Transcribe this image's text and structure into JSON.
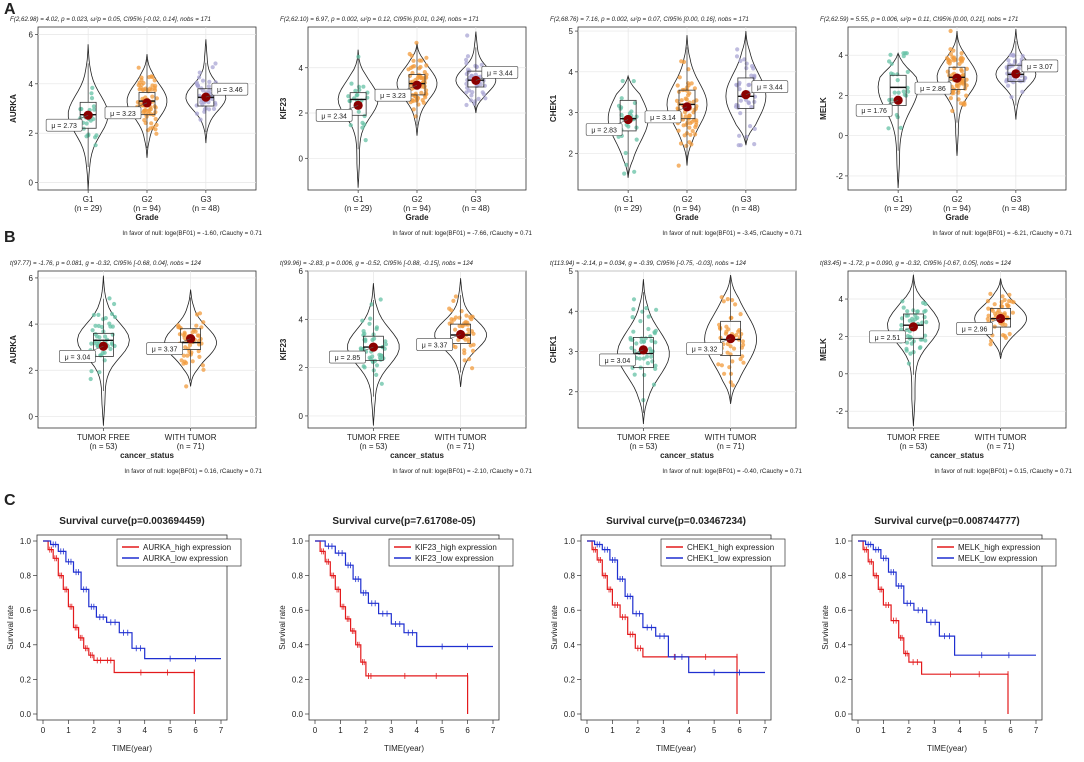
{
  "panels": {
    "a": "A",
    "b": "B",
    "c": "C"
  },
  "colors": {
    "g1": "#66C2A5",
    "g2": "#F29B3C",
    "g3": "#A9A5D4",
    "tf": "#66C2A5",
    "wt": "#F29B3C",
    "mean": "#8B0000",
    "high": "#E31A1C",
    "low": "#1F2FD0",
    "grid": "#E6E6E6",
    "border": "#333333"
  },
  "chart_data": {
    "row_a": {
      "type": "violin",
      "xlabel": "Grade",
      "groups": [
        {
          "name": "G1",
          "n": "(n = 29)"
        },
        {
          "name": "G2",
          "n": "(n = 94)"
        },
        {
          "name": "G3",
          "n": "(n = 48)"
        }
      ],
      "charts": [
        {
          "gene": "AURKA",
          "ylim": [
            -0.3,
            6.3
          ],
          "yticks": [
            0,
            2,
            4,
            6
          ],
          "subtitle": "F(2,62.98) = 4.02, p = 0.023, ω²p = 0.05, CI95% [-0.02, 0.14], nobs = 171",
          "footer": "In favor of null: loge(BF01) = -1.60, rCauchy = 0.71",
          "stats": [
            {
              "mean": 2.73,
              "median": 2.75,
              "q1": 2.2,
              "q3": 3.25,
              "min": -0.3,
              "max": 5.6,
              "label": "μ = 2.73"
            },
            {
              "mean": 3.23,
              "median": 3.3,
              "q1": 2.75,
              "q3": 3.65,
              "min": 1.0,
              "max": 5.2,
              "label": "μ = 3.23"
            },
            {
              "mean": 3.46,
              "median": 3.45,
              "q1": 3.1,
              "q3": 3.8,
              "min": 1.6,
              "max": 5.8,
              "label": "μ = 3.46"
            }
          ]
        },
        {
          "gene": "KIF23",
          "ylim": [
            -1.4,
            5.8
          ],
          "yticks": [
            0,
            2,
            4
          ],
          "subtitle": "F(2,62.10) = 6.97, p = 0.002, ω²p = 0.12, CI95% [0.01, 0.24], nobs = 171",
          "footer": "In favor of null: loge(BF01) = -7.66, rCauchy = 0.71",
          "stats": [
            {
              "mean": 2.34,
              "median": 2.6,
              "q1": 1.9,
              "q3": 2.9,
              "min": -1.3,
              "max": 4.8,
              "label": "μ = 2.34"
            },
            {
              "mean": 3.23,
              "median": 3.3,
              "q1": 2.8,
              "q3": 3.7,
              "min": 1.0,
              "max": 5.1,
              "label": "μ = 3.23"
            },
            {
              "mean": 3.44,
              "median": 3.45,
              "q1": 3.15,
              "q3": 3.85,
              "min": 2.0,
              "max": 5.6,
              "label": "μ = 3.44"
            }
          ]
        },
        {
          "gene": "CHEK1",
          "ylim": [
            1.1,
            5.1
          ],
          "yticks": [
            2,
            3,
            4,
            5
          ],
          "subtitle": "F(2,68.76) = 7.16, p = 0.002, ω²p = 0.07, CI95% [0.00, 0.16], nobs = 171",
          "footer": "In favor of null: loge(BF01) = -3.45, rCauchy = 0.71",
          "stats": [
            {
              "mean": 2.83,
              "median": 2.85,
              "q1": 2.55,
              "q3": 3.3,
              "min": 1.4,
              "max": 3.9,
              "label": "μ = 2.83"
            },
            {
              "mean": 3.14,
              "median": 3.2,
              "q1": 2.85,
              "q3": 3.55,
              "min": 1.7,
              "max": 4.9,
              "label": "μ = 3.14"
            },
            {
              "mean": 3.44,
              "median": 3.4,
              "q1": 3.1,
              "q3": 3.85,
              "min": 2.2,
              "max": 5.0,
              "label": "μ = 3.44"
            }
          ]
        },
        {
          "gene": "MELK",
          "ylim": [
            -2.7,
            5.4
          ],
          "yticks": [
            -2,
            0,
            2,
            4
          ],
          "subtitle": "F(2,62.59) = 5.55, p = 0.006, ω²p = 0.11, CI95% [0.00, 0.21], nobs = 171",
          "footer": "In favor of null: loge(BF01) = -6.21, rCauchy = 0.71",
          "stats": [
            {
              "mean": 1.76,
              "median": 2.4,
              "q1": 1.5,
              "q3": 3.0,
              "min": -2.6,
              "max": 4.1,
              "label": "μ = 1.76"
            },
            {
              "mean": 2.86,
              "median": 2.9,
              "q1": 2.3,
              "q3": 3.4,
              "min": -1.0,
              "max": 5.2,
              "label": "μ = 2.86"
            },
            {
              "mean": 3.07,
              "median": 3.05,
              "q1": 2.7,
              "q3": 3.5,
              "min": 0.8,
              "max": 5.3,
              "label": "μ = 3.07"
            }
          ]
        }
      ]
    },
    "row_b": {
      "type": "violin",
      "xlabel": "cancer_status",
      "groups": [
        {
          "name": "TUMOR FREE",
          "n": "(n = 53)"
        },
        {
          "name": "WITH TUMOR",
          "n": "(n = 71)"
        }
      ],
      "charts": [
        {
          "gene": "AURKA",
          "ylim": [
            -0.5,
            6.3
          ],
          "yticks": [
            0,
            2,
            4,
            6
          ],
          "subtitle": "t(97.77) = -1.76, p = 0.081, g = -0.32, CI95% [-0.68, 0.04], nobs = 124",
          "footer": "In favor of null: loge(BF01) = 0.16, rCauchy = 0.71",
          "stats": [
            {
              "mean": 3.04,
              "median": 3.3,
              "q1": 2.6,
              "q3": 3.6,
              "min": -0.4,
              "max": 6.1,
              "label": "μ = 3.04"
            },
            {
              "mean": 3.37,
              "median": 3.2,
              "q1": 2.9,
              "q3": 3.8,
              "min": 1.3,
              "max": 5.5,
              "label": "μ = 3.37"
            }
          ]
        },
        {
          "gene": "KIF23",
          "ylim": [
            -0.5,
            6.0
          ],
          "yticks": [
            0,
            2,
            4,
            6
          ],
          "subtitle": "t(99.96) = -2.83, p = 0.006, g = -0.52, CI95% [-0.88, -0.15], nobs = 124",
          "footer": "In favor of null: loge(BF01) = -2.10, rCauchy = 0.71",
          "stats": [
            {
              "mean": 2.85,
              "median": 2.85,
              "q1": 2.3,
              "q3": 3.3,
              "min": -0.4,
              "max": 5.5,
              "label": "μ = 2.85"
            },
            {
              "mean": 3.37,
              "median": 3.35,
              "q1": 3.0,
              "q3": 3.8,
              "min": 1.2,
              "max": 5.7,
              "label": "μ = 3.37"
            }
          ]
        },
        {
          "gene": "CHEK1",
          "ylim": [
            1.1,
            5.0
          ],
          "yticks": [
            2,
            3,
            4,
            5
          ],
          "subtitle": "t(113.94) = -2.14, p = 0.034, g = -0.39, CI95% [-0.75, -0.03], nobs = 124",
          "footer": "In favor of null: loge(BF01) = -0.40, rCauchy = 0.71",
          "stats": [
            {
              "mean": 3.04,
              "median": 2.95,
              "q1": 2.6,
              "q3": 3.35,
              "min": 1.2,
              "max": 4.8,
              "label": "μ = 3.04"
            },
            {
              "mean": 3.32,
              "median": 3.3,
              "q1": 2.9,
              "q3": 3.75,
              "min": 1.7,
              "max": 4.9,
              "label": "μ = 3.32"
            }
          ]
        },
        {
          "gene": "MELK",
          "ylim": [
            -2.9,
            5.5
          ],
          "yticks": [
            -2,
            0,
            2,
            4
          ],
          "subtitle": "t(83.45) = -1.72, p = 0.090, g = -0.32, CI95% [-0.67, 0.05], nobs = 124",
          "footer": "In favor of null: loge(BF01) = 0.15, rCauchy = 0.71",
          "stats": [
            {
              "mean": 2.51,
              "median": 2.6,
              "q1": 1.9,
              "q3": 3.2,
              "min": -2.8,
              "max": 5.3,
              "label": "μ = 2.51"
            },
            {
              "mean": 2.96,
              "median": 2.95,
              "q1": 2.5,
              "q3": 3.5,
              "min": 0.8,
              "max": 5.1,
              "label": "μ = 2.96"
            }
          ]
        }
      ]
    },
    "row_c": {
      "type": "line",
      "xlabel": "TIME(year)",
      "ylabel": "Survival rate",
      "xlim": [
        0,
        7
      ],
      "ylim": [
        0,
        1
      ],
      "xticks": [
        0,
        1,
        2,
        3,
        4,
        5,
        6,
        7
      ],
      "yticks": [
        0.0,
        0.2,
        0.4,
        0.6,
        0.8,
        1.0
      ],
      "ytick_labels": [
        "0.0",
        "0.2",
        "0.4",
        "0.6",
        "0.8",
        "1.0"
      ],
      "charts": [
        {
          "title": "Survival curve(p=0.003694459)",
          "series": [
            {
              "name": "AURKA_high expression",
              "color": "#E31A1C",
              "points": [
                [
                  0,
                  1
                ],
                [
                  0.2,
                  0.95
                ],
                [
                  0.4,
                  0.9
                ],
                [
                  0.6,
                  0.8
                ],
                [
                  0.8,
                  0.72
                ],
                [
                  1.0,
                  0.62
                ],
                [
                  1.2,
                  0.5
                ],
                [
                  1.4,
                  0.44
                ],
                [
                  1.6,
                  0.38
                ],
                [
                  1.8,
                  0.34
                ],
                [
                  2.0,
                  0.31
                ],
                [
                  2.4,
                  0.31
                ],
                [
                  2.8,
                  0.24
                ],
                [
                  5.95,
                  0.24
                ],
                [
                  5.95,
                  0.0
                ]
              ]
            },
            {
              "name": "AURKA_low expression",
              "color": "#1F2FD0",
              "points": [
                [
                  0,
                  1
                ],
                [
                  0.3,
                  0.98
                ],
                [
                  0.6,
                  0.94
                ],
                [
                  0.9,
                  0.88
                ],
                [
                  1.2,
                  0.82
                ],
                [
                  1.5,
                  0.72
                ],
                [
                  1.8,
                  0.62
                ],
                [
                  2.1,
                  0.56
                ],
                [
                  2.5,
                  0.53
                ],
                [
                  3.0,
                  0.47
                ],
                [
                  3.5,
                  0.38
                ],
                [
                  4.0,
                  0.32
                ],
                [
                  7.0,
                  0.32
                ]
              ]
            }
          ]
        },
        {
          "title": "Survival curve(p=7.61708e-05)",
          "series": [
            {
              "name": "KIF23_high expression",
              "color": "#E31A1C",
              "points": [
                [
                  0,
                  1
                ],
                [
                  0.2,
                  0.94
                ],
                [
                  0.4,
                  0.88
                ],
                [
                  0.6,
                  0.8
                ],
                [
                  0.8,
                  0.72
                ],
                [
                  1.0,
                  0.62
                ],
                [
                  1.2,
                  0.55
                ],
                [
                  1.4,
                  0.48
                ],
                [
                  1.6,
                  0.4
                ],
                [
                  1.8,
                  0.3
                ],
                [
                  2.0,
                  0.22
                ],
                [
                  2.3,
                  0.22
                ],
                [
                  6.0,
                  0.22
                ],
                [
                  6.0,
                  0.0
                ]
              ]
            },
            {
              "name": "KIF23_low expression",
              "color": "#1F2FD0",
              "points": [
                [
                  0,
                  1
                ],
                [
                  0.4,
                  0.97
                ],
                [
                  0.8,
                  0.93
                ],
                [
                  1.2,
                  0.86
                ],
                [
                  1.5,
                  0.78
                ],
                [
                  1.8,
                  0.7
                ],
                [
                  2.1,
                  0.64
                ],
                [
                  2.5,
                  0.58
                ],
                [
                  3.0,
                  0.52
                ],
                [
                  3.5,
                  0.47
                ],
                [
                  4.0,
                  0.39
                ],
                [
                  7.0,
                  0.39
                ]
              ]
            }
          ]
        },
        {
          "title": "Survival curve(p=0.03467234)",
          "series": [
            {
              "name": "CHEK1_high expression",
              "color": "#E31A1C",
              "points": [
                [
                  0,
                  1
                ],
                [
                  0.2,
                  0.95
                ],
                [
                  0.4,
                  0.89
                ],
                [
                  0.6,
                  0.8
                ],
                [
                  0.8,
                  0.72
                ],
                [
                  1.0,
                  0.63
                ],
                [
                  1.3,
                  0.56
                ],
                [
                  1.6,
                  0.46
                ],
                [
                  1.9,
                  0.38
                ],
                [
                  2.2,
                  0.33
                ],
                [
                  5.9,
                  0.33
                ],
                [
                  5.9,
                  0.0
                ]
              ]
            },
            {
              "name": "CHEK1_low expression",
              "color": "#1F2FD0",
              "points": [
                [
                  0,
                  1
                ],
                [
                  0.3,
                  0.98
                ],
                [
                  0.6,
                  0.95
                ],
                [
                  0.9,
                  0.89
                ],
                [
                  1.2,
                  0.78
                ],
                [
                  1.5,
                  0.68
                ],
                [
                  1.8,
                  0.58
                ],
                [
                  2.2,
                  0.5
                ],
                [
                  2.7,
                  0.45
                ],
                [
                  3.2,
                  0.33
                ],
                [
                  4.0,
                  0.24
                ],
                [
                  7.0,
                  0.24
                ]
              ]
            }
          ]
        },
        {
          "title": "Survival curve(p=0.008744777)",
          "series": [
            {
              "name": "MELK_high expression",
              "color": "#E31A1C",
              "points": [
                [
                  0,
                  1
                ],
                [
                  0.2,
                  0.95
                ],
                [
                  0.4,
                  0.88
                ],
                [
                  0.6,
                  0.8
                ],
                [
                  0.8,
                  0.72
                ],
                [
                  1.0,
                  0.63
                ],
                [
                  1.3,
                  0.54
                ],
                [
                  1.6,
                  0.44
                ],
                [
                  1.8,
                  0.35
                ],
                [
                  2.0,
                  0.3
                ],
                [
                  2.5,
                  0.23
                ],
                [
                  5.9,
                  0.23
                ],
                [
                  5.9,
                  0.0
                ]
              ]
            },
            {
              "name": "MELK_low expression",
              "color": "#1F2FD0",
              "points": [
                [
                  0,
                  1
                ],
                [
                  0.3,
                  0.98
                ],
                [
                  0.6,
                  0.95
                ],
                [
                  0.9,
                  0.9
                ],
                [
                  1.2,
                  0.82
                ],
                [
                  1.5,
                  0.74
                ],
                [
                  1.8,
                  0.64
                ],
                [
                  2.2,
                  0.6
                ],
                [
                  2.7,
                  0.53
                ],
                [
                  3.2,
                  0.45
                ],
                [
                  3.8,
                  0.34
                ],
                [
                  7.0,
                  0.34
                ]
              ]
            }
          ]
        }
      ]
    }
  }
}
